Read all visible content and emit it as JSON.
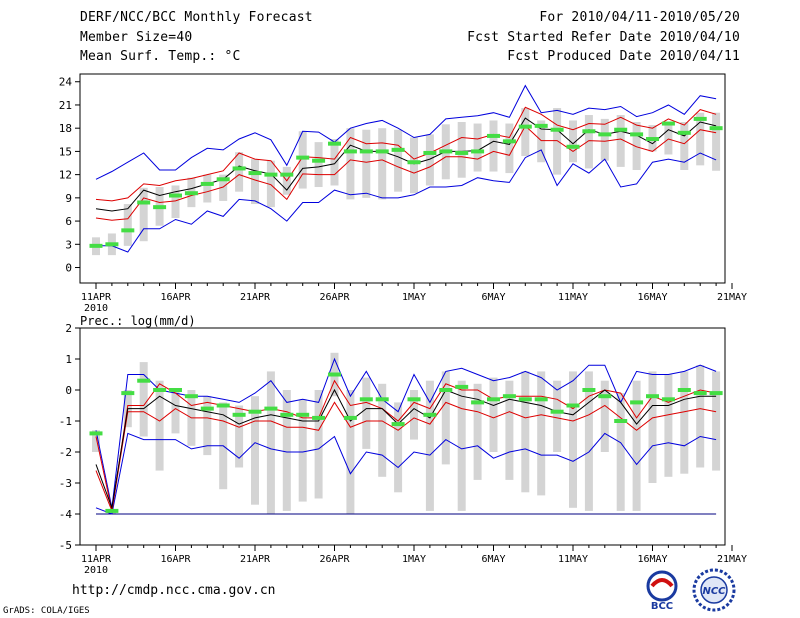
{
  "header": {
    "title": "DERF/NCC/BCC Monthly Forecast",
    "member_size": "Member Size=40",
    "variable": "Mean Surf. Temp.: °C",
    "period": "For 2010/04/11-2010/05/20",
    "started_refer": "Fcst Started Refer Date 2010/04/10",
    "produced": "Fcst Produced Date 2010/04/11"
  },
  "footer": {
    "url": "http://cmdp.ncc.cma.gov.cn",
    "credit": "GrADS: COLA/IGES",
    "logo_bcc": "BCC",
    "logo_ncc": "NCC"
  },
  "colors": {
    "envelope": "#0000dd",
    "inner_band": "#dd0000",
    "ensemble_mean": "#000000",
    "member_box": "#d4d4d4",
    "marker": "#44dd44"
  },
  "chart_data": [
    {
      "type": "line",
      "title": "Mean Surf. Temp.: °C",
      "xlabel": "",
      "ylabel": "",
      "ylim": [
        -2,
        25
      ],
      "yticks": [
        0,
        3,
        6,
        9,
        12,
        15,
        18,
        21,
        24
      ],
      "xticks": [
        {
          "day": 0,
          "label": "11APR"
        },
        {
          "day": 5,
          "label": "16APR"
        },
        {
          "day": 10,
          "label": "21APR"
        },
        {
          "day": 15,
          "label": "26APR"
        },
        {
          "day": 20,
          "label": "1MAY"
        },
        {
          "day": 25,
          "label": "6MAY"
        },
        {
          "day": 30,
          "label": "11MAY"
        },
        {
          "day": 35,
          "label": "16MAY"
        },
        {
          "day": 40,
          "label": "21MAY"
        }
      ],
      "year_label": "2010",
      "series": [
        {
          "name": "max",
          "values": [
            11.4,
            12.4,
            13.6,
            14.8,
            12.6,
            12.6,
            14.2,
            15.4,
            15.2,
            16.6,
            17.4,
            16.5,
            13.2,
            17.6,
            17.5,
            16.2,
            18.0,
            18.6,
            19.0,
            18.0,
            16.8,
            17.2,
            19.2,
            19.4,
            19.6,
            20.0,
            19.4,
            23.5,
            20.0,
            20.3,
            19.8,
            20.6,
            20.4,
            20.8,
            19.5,
            20.0,
            21.0,
            19.8,
            22.2,
            21.8
          ]
        },
        {
          "name": "upper",
          "values": [
            8.8,
            8.6,
            9.0,
            10.8,
            10.6,
            11.2,
            11.5,
            12.0,
            12.5,
            14.8,
            14.0,
            13.8,
            11.2,
            14.3,
            14.2,
            14.0,
            16.8,
            16.0,
            16.1,
            15.8,
            14.0,
            14.8,
            15.8,
            16.8,
            16.6,
            17.2,
            16.8,
            20.7,
            19.8,
            18.4,
            17.8,
            18.6,
            18.5,
            19.4,
            18.4,
            18.0,
            19.2,
            18.4,
            20.4,
            19.8
          ]
        },
        {
          "name": "mean",
          "values": [
            7.6,
            7.3,
            7.6,
            10.0,
            9.3,
            9.8,
            10.2,
            10.8,
            11.4,
            13.1,
            12.5,
            12.1,
            10.0,
            12.8,
            13.0,
            13.4,
            15.8,
            15.0,
            15.0,
            14.3,
            13.4,
            14.0,
            15.0,
            15.0,
            15.1,
            16.3,
            15.9,
            19.3,
            17.9,
            17.8,
            16.0,
            17.8,
            17.2,
            17.6,
            17.1,
            16.0,
            17.8,
            17.0,
            18.8,
            18.3
          ]
        },
        {
          "name": "lower",
          "values": [
            6.4,
            6.1,
            6.3,
            9.0,
            8.4,
            8.6,
            9.3,
            9.8,
            10.4,
            12.0,
            11.3,
            10.7,
            8.8,
            12.1,
            12.0,
            12.0,
            13.9,
            13.6,
            13.9,
            13.0,
            12.2,
            13.0,
            14.3,
            14.3,
            14.0,
            15.0,
            14.5,
            18.3,
            16.4,
            16.4,
            15.0,
            16.4,
            16.3,
            16.6,
            15.6,
            15.0,
            16.6,
            16.0,
            17.8,
            17.4
          ]
        },
        {
          "name": "min",
          "values": [
            2.8,
            2.8,
            2.0,
            5.0,
            5.0,
            6.2,
            5.6,
            7.3,
            6.6,
            8.8,
            8.6,
            7.6,
            6.0,
            8.4,
            8.4,
            10.0,
            9.4,
            9.6,
            9.0,
            9.0,
            9.4,
            10.4,
            10.4,
            10.6,
            11.6,
            11.2,
            11.0,
            14.2,
            15.2,
            10.6,
            13.4,
            12.2,
            14.0,
            10.4,
            10.8,
            13.6,
            14.0,
            13.6,
            14.8,
            13.9
          ]
        },
        {
          "name": "box_top",
          "values": [
            3.9,
            4.4,
            8.2,
            10.3,
            10.4,
            10.6,
            11.6,
            12.0,
            12.0,
            14.9,
            14.0,
            13.8,
            13.0,
            17.6,
            16.2,
            16.6,
            18.0,
            17.8,
            18.0,
            17.8,
            16.8,
            17.2,
            18.5,
            18.8,
            18.6,
            19.0,
            18.6,
            20.6,
            19.0,
            20.6,
            19.0,
            19.7,
            19.2,
            19.7,
            18.8,
            18.4,
            18.6,
            18.8,
            20.0,
            20.0
          ]
        },
        {
          "name": "box_bottom",
          "values": [
            1.6,
            1.6,
            2.8,
            3.4,
            5.4,
            6.4,
            7.8,
            8.4,
            8.6,
            9.8,
            8.2,
            7.8,
            9.4,
            10.2,
            10.4,
            10.6,
            8.8,
            9.0,
            8.8,
            9.8,
            9.6,
            10.6,
            11.4,
            11.6,
            12.4,
            12.4,
            12.2,
            14.4,
            13.6,
            12.0,
            13.6,
            12.8,
            13.8,
            13.0,
            12.6,
            15.0,
            14.6,
            12.6,
            13.2,
            12.5
          ]
        },
        {
          "name": "marker",
          "values": [
            2.8,
            3.0,
            4.8,
            8.4,
            7.8,
            9.3,
            9.6,
            10.8,
            11.4,
            12.8,
            12.2,
            12.0,
            12.0,
            14.2,
            13.8,
            16.0,
            15.0,
            15.0,
            15.0,
            15.2,
            13.6,
            14.8,
            15.0,
            14.8,
            15.0,
            17.0,
            16.3,
            18.2,
            18.3,
            17.8,
            15.6,
            17.6,
            17.2,
            17.8,
            17.2,
            16.6,
            18.6,
            17.4,
            19.2,
            18.0
          ]
        }
      ]
    },
    {
      "type": "line",
      "title": "Prec.: log(mm/d)",
      "xlabel": "",
      "ylabel": "",
      "ylim": [
        -5,
        2
      ],
      "yticks": [
        -5,
        -4,
        -3,
        -2,
        -1,
        0,
        1,
        2
      ],
      "xticks": [
        {
          "day": 0,
          "label": "11APR"
        },
        {
          "day": 5,
          "label": "16APR"
        },
        {
          "day": 10,
          "label": "21APR"
        },
        {
          "day": 15,
          "label": "26APR"
        },
        {
          "day": 20,
          "label": "1MAY"
        },
        {
          "day": 25,
          "label": "6MAY"
        },
        {
          "day": 30,
          "label": "11MAY"
        },
        {
          "day": 35,
          "label": "16MAY"
        },
        {
          "day": 40,
          "label": "21MAY"
        }
      ],
      "year_label": "2010",
      "reference_line": -4,
      "series": [
        {
          "name": "max",
          "values": [
            -1.3,
            -3.8,
            0.5,
            0.5,
            0.0,
            -0.1,
            -0.2,
            -0.2,
            -0.3,
            -0.4,
            -0.1,
            0.3,
            -0.4,
            -0.3,
            -0.4,
            1.0,
            -0.2,
            0.6,
            -0.3,
            -0.7,
            0.5,
            -0.4,
            0.6,
            0.7,
            0.5,
            0.3,
            0.4,
            0.6,
            0.4,
            0.0,
            0.3,
            0.8,
            0.8,
            -0.4,
            0.6,
            0.5,
            0.5,
            0.6,
            0.8,
            0.6
          ]
        },
        {
          "name": "upper",
          "values": [
            -1.5,
            -3.9,
            -0.5,
            -0.5,
            0.2,
            -0.1,
            -0.5,
            -0.4,
            -0.5,
            -0.6,
            -0.7,
            -0.6,
            -0.7,
            -0.9,
            -0.9,
            0.3,
            -0.5,
            -0.4,
            -0.6,
            -1.0,
            -0.4,
            -0.6,
            0.2,
            0.0,
            0.0,
            -0.3,
            -0.2,
            -0.2,
            -0.2,
            -0.3,
            -0.6,
            -0.2,
            0.0,
            -0.1,
            -0.9,
            -0.2,
            -0.4,
            -0.2,
            0.0,
            -0.1
          ]
        },
        {
          "name": "mean",
          "values": [
            -2.4,
            -3.8,
            -0.6,
            -0.6,
            -0.2,
            -0.5,
            -0.6,
            -0.7,
            -0.8,
            -1.1,
            -0.9,
            -0.8,
            -0.9,
            -1.0,
            -1.0,
            0.0,
            -1.0,
            -0.6,
            -0.6,
            -1.1,
            -0.6,
            -0.9,
            0.0,
            -0.2,
            -0.3,
            -0.5,
            -0.3,
            -0.4,
            -0.5,
            -0.7,
            -0.8,
            -0.4,
            0.0,
            -0.4,
            -1.1,
            -0.5,
            -0.5,
            -0.3,
            -0.2,
            -0.2
          ]
        },
        {
          "name": "lower",
          "values": [
            -2.6,
            -3.9,
            -0.7,
            -0.7,
            -1.0,
            -0.6,
            -0.9,
            -0.9,
            -1.0,
            -1.2,
            -1.0,
            -1.0,
            -1.2,
            -1.2,
            -1.3,
            -0.4,
            -1.2,
            -1.0,
            -1.0,
            -1.3,
            -0.9,
            -1.1,
            -0.4,
            -0.6,
            -0.7,
            -0.9,
            -0.7,
            -0.9,
            -0.8,
            -0.9,
            -1.0,
            -0.8,
            -0.5,
            -0.9,
            -1.3,
            -0.9,
            -0.8,
            -0.7,
            -0.6,
            -0.7
          ]
        },
        {
          "name": "min",
          "values": [
            -3.8,
            -4.0,
            -1.4,
            -1.6,
            -1.6,
            -1.6,
            -1.9,
            -1.8,
            -1.8,
            -2.2,
            -1.7,
            -1.9,
            -2.0,
            -2.0,
            -1.9,
            -1.5,
            -2.7,
            -2.0,
            -2.1,
            -2.5,
            -2.0,
            -2.1,
            -1.6,
            -1.9,
            -1.8,
            -2.2,
            -2.0,
            -1.9,
            -2.1,
            -2.1,
            -2.3,
            -2.0,
            -1.4,
            -1.7,
            -2.4,
            -1.8,
            -1.7,
            -1.8,
            -1.5,
            -1.6
          ]
        },
        {
          "name": "box_top",
          "values": [
            -1.3,
            -3.9,
            0.0,
            0.9,
            0.3,
            0.0,
            0.0,
            -0.2,
            -0.4,
            -0.5,
            -0.2,
            0.6,
            0.0,
            -0.3,
            0.0,
            1.2,
            0.0,
            0.4,
            0.2,
            -0.4,
            0.0,
            0.3,
            0.6,
            0.3,
            0.2,
            0.4,
            0.3,
            0.6,
            0.6,
            0.3,
            0.6,
            0.6,
            0.3,
            -0.1,
            0.3,
            0.6,
            0.5,
            0.6,
            0.8,
            0.6
          ]
        },
        {
          "name": "box_bottom",
          "values": [
            -2.0,
            -4.0,
            -1.2,
            -1.5,
            -2.6,
            -1.4,
            -1.8,
            -2.1,
            -3.2,
            -2.5,
            -3.7,
            -4.0,
            -3.9,
            -3.6,
            -3.5,
            -0.2,
            -4.0,
            -1.9,
            -2.8,
            -3.3,
            -1.6,
            -3.9,
            -2.4,
            -3.9,
            -2.9,
            -2.0,
            -2.9,
            -3.3,
            -3.4,
            -2.0,
            -3.8,
            -3.9,
            -2.0,
            -3.9,
            -3.9,
            -3.0,
            -2.8,
            -2.7,
            -2.5,
            -2.6
          ]
        },
        {
          "name": "marker",
          "values": [
            -1.4,
            -3.9,
            -0.1,
            0.3,
            0.0,
            0.0,
            -0.2,
            -0.6,
            -0.5,
            -0.8,
            -0.7,
            -0.6,
            -0.8,
            -0.8,
            -0.9,
            0.5,
            -0.9,
            -0.3,
            -0.3,
            -1.1,
            -0.3,
            -0.8,
            0.0,
            0.1,
            -0.4,
            -0.3,
            -0.2,
            -0.3,
            -0.3,
            -0.7,
            -0.5,
            0.0,
            -0.2,
            -1.0,
            -0.4,
            -0.2,
            -0.3,
            0.0,
            -0.1,
            -0.1
          ]
        }
      ]
    }
  ]
}
